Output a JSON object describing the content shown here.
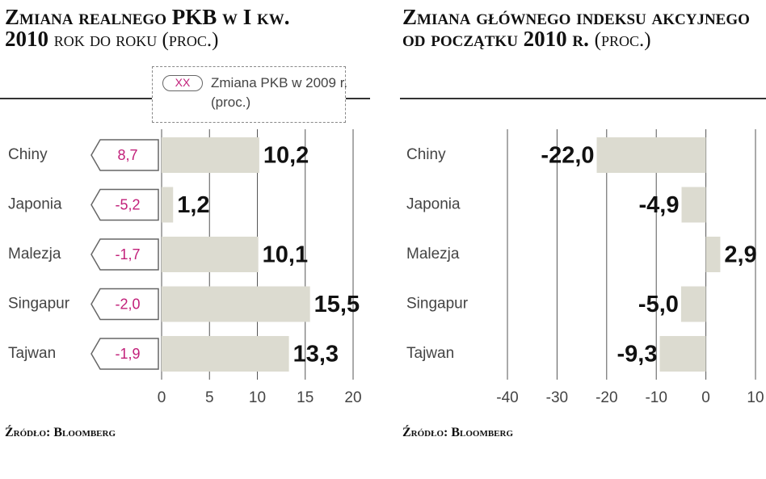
{
  "chart_data": [
    {
      "type": "bar",
      "orientation": "horizontal",
      "title": "Zmiana realnego PKB w I kw. 2010",
      "subtitle": "rok do roku (proc.)",
      "categories": [
        "Chiny",
        "Japonia",
        "Malezja",
        "Singapur",
        "Tajwan"
      ],
      "series": [
        {
          "name": "Zmiana realnego PKB w I kw. 2010",
          "color": "#dcdbd0",
          "values": [
            10.2,
            1.2,
            10.1,
            15.5,
            13.3
          ],
          "value_labels": [
            "10,2",
            "1,2",
            "10,1",
            "15,5",
            "13,3"
          ]
        },
        {
          "name": "Zmiana PKB w 2009 r. (proc.)",
          "color": "#c2207a",
          "marker_text": "XX",
          "values": [
            8.7,
            -5.2,
            -1.7,
            -2.0,
            -1.9
          ],
          "value_labels": [
            "8,7",
            "-5,2",
            "-1,7",
            "-2,0",
            "-1,9"
          ]
        }
      ],
      "xlim": [
        0,
        20
      ],
      "xticks": [
        0,
        5,
        10,
        15,
        20
      ],
      "grid": true,
      "source": "Źródło: Bloomberg"
    },
    {
      "type": "bar",
      "orientation": "horizontal",
      "title": "Zmiana głównego indeksu akcyjnego od początku 2010 r.",
      "subtitle": "(proc.)",
      "categories": [
        "Chiny",
        "Japonia",
        "Malezja",
        "Singapur",
        "Tajwan"
      ],
      "series": [
        {
          "name": "Zmiana głównego indeksu akcyjnego od początku 2010 r.",
          "color": "#dcdbd0",
          "values": [
            -22.0,
            -4.9,
            2.9,
            -5.0,
            -9.3
          ],
          "value_labels": [
            "-22,0",
            "-4,9",
            "2,9",
            "-5,0",
            "-9,3"
          ]
        }
      ],
      "xlim": [
        -40,
        10
      ],
      "xticks": [
        -40,
        -30,
        -20,
        -10,
        0,
        10
      ],
      "grid": true,
      "source": "Źródło: Bloomberg"
    }
  ]
}
